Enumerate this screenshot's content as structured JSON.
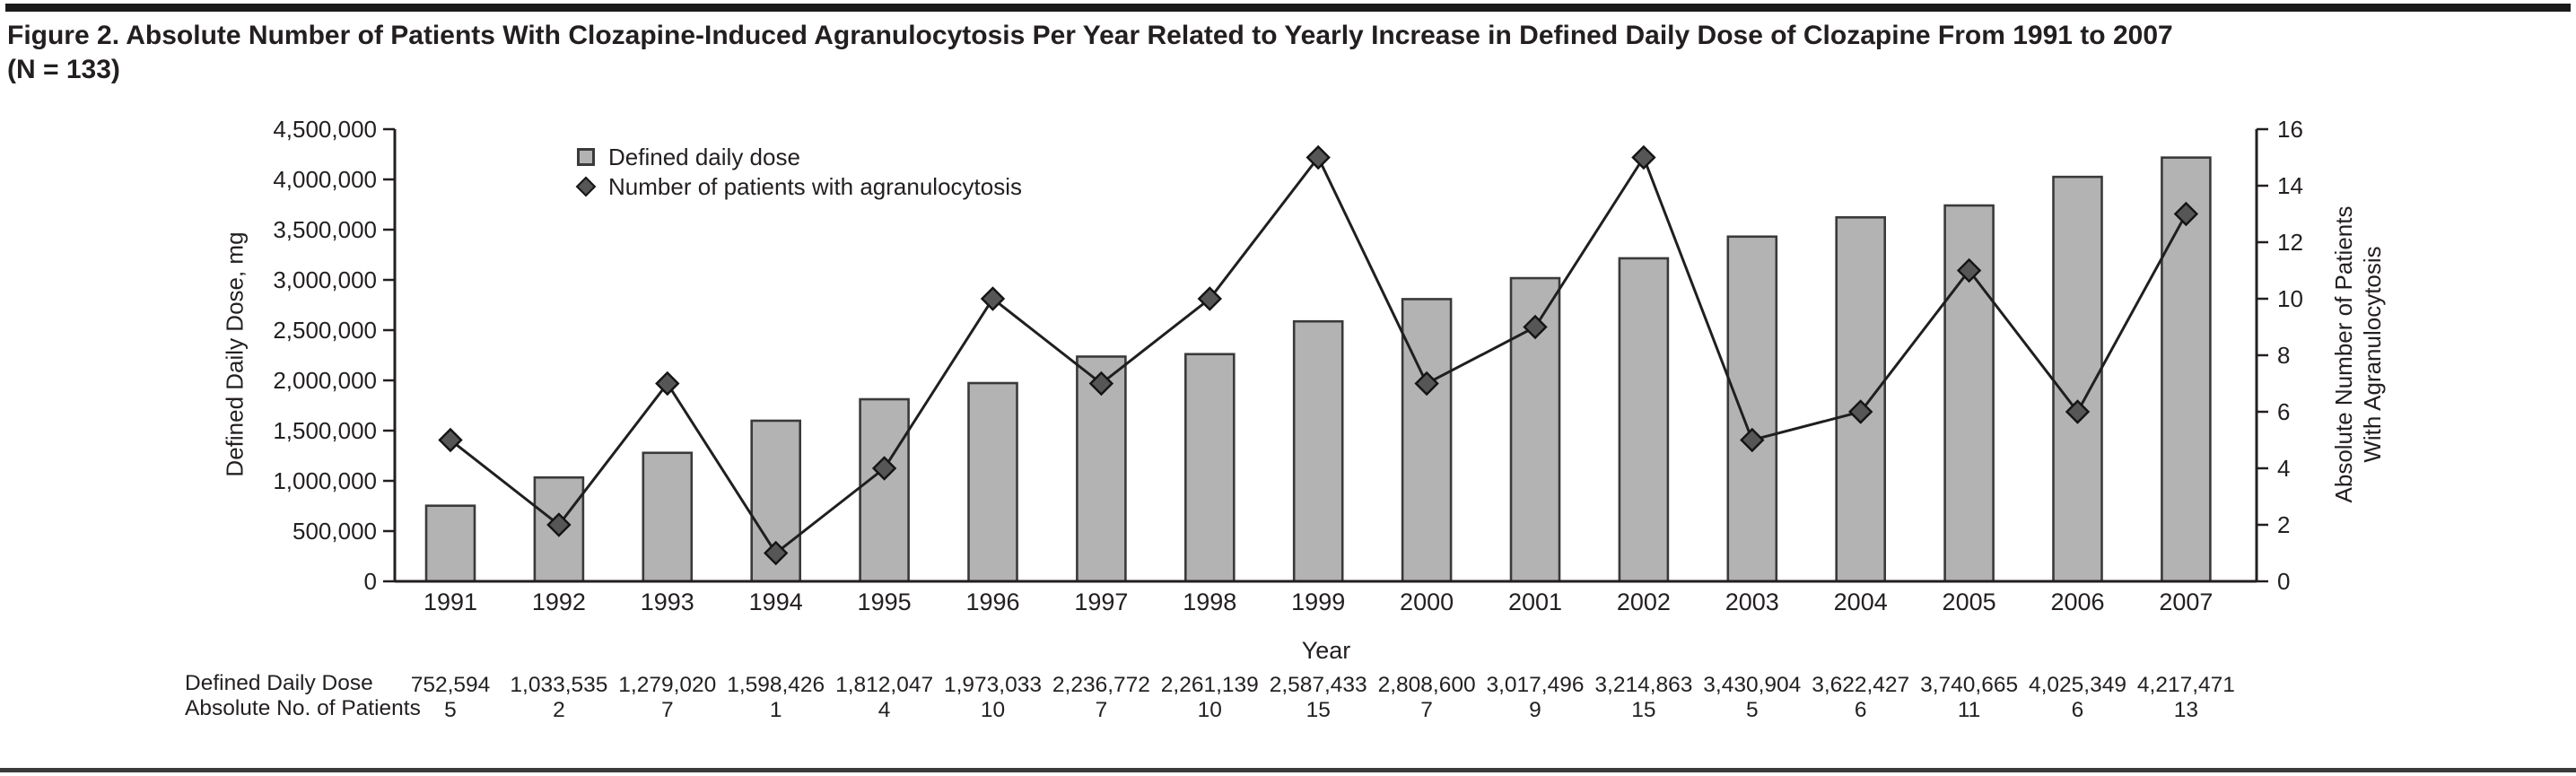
{
  "figure": {
    "title": "Figure 2. Absolute Number of Patients With Clozapine-Induced Agranulocytosis Per Year Related to Yearly Increase in Defined Daily Dose of Clozapine From 1991 to 2007",
    "title_line2": "(N = 133)"
  },
  "chart_data": {
    "type": "bar",
    "combo": "bar+line",
    "xlabel": "Year",
    "grid": false,
    "legend_position": "top-left-inside",
    "categories": [
      "1991",
      "1992",
      "1993",
      "1994",
      "1995",
      "1996",
      "1997",
      "1998",
      "1999",
      "2000",
      "2001",
      "2002",
      "2003",
      "2004",
      "2005",
      "2006",
      "2007"
    ],
    "series": [
      {
        "name": "Defined daily dose",
        "type": "bar",
        "axis": "left",
        "values": [
          752594,
          1033535,
          1279020,
          1598426,
          1812047,
          1973033,
          2236772,
          2261139,
          2587433,
          2808600,
          3017496,
          3214863,
          3430904,
          3622427,
          3740665,
          4025349,
          4217471
        ]
      },
      {
        "name": "Number of patients with agranulocytosis",
        "type": "line",
        "marker": "diamond",
        "axis": "right",
        "values": [
          5,
          2,
          7,
          1,
          4,
          10,
          7,
          10,
          15,
          7,
          9,
          15,
          5,
          6,
          11,
          6,
          13
        ]
      }
    ],
    "left_axis": {
      "label": "Defined Daily Dose, mg",
      "min": 0,
      "max": 4500000,
      "step": 500000
    },
    "right_axis": {
      "label": [
        "Absolute Number of Patients",
        "With Agranulocytosis"
      ],
      "min": 0,
      "max": 16,
      "step": 2
    },
    "colors": {
      "bar_fill": "#b3b3b3",
      "bar_stroke": "#3a3a3a",
      "line_stroke": "#1f1f1f",
      "marker_fill": "#565656",
      "marker_stroke": "#141414",
      "axis_stroke": "#231f20",
      "text": "#231f20"
    }
  },
  "data_table": {
    "rows": [
      {
        "label": "Defined Daily Dose",
        "values": [
          "752,594",
          "1,033,535",
          "1,279,020",
          "1,598,426",
          "1,812,047",
          "1,973,033",
          "2,236,772",
          "2,261,139",
          "2,587,433",
          "2,808,600",
          "3,017,496",
          "3,214,863",
          "3,430,904",
          "3,622,427",
          "3,740,665",
          "4,025,349",
          "4,217,471"
        ]
      },
      {
        "label": "Absolute No. of Patients",
        "values": [
          "5",
          "2",
          "7",
          "1",
          "4",
          "10",
          "7",
          "10",
          "15",
          "7",
          "9",
          "15",
          "5",
          "6",
          "11",
          "6",
          "13"
        ]
      }
    ]
  }
}
